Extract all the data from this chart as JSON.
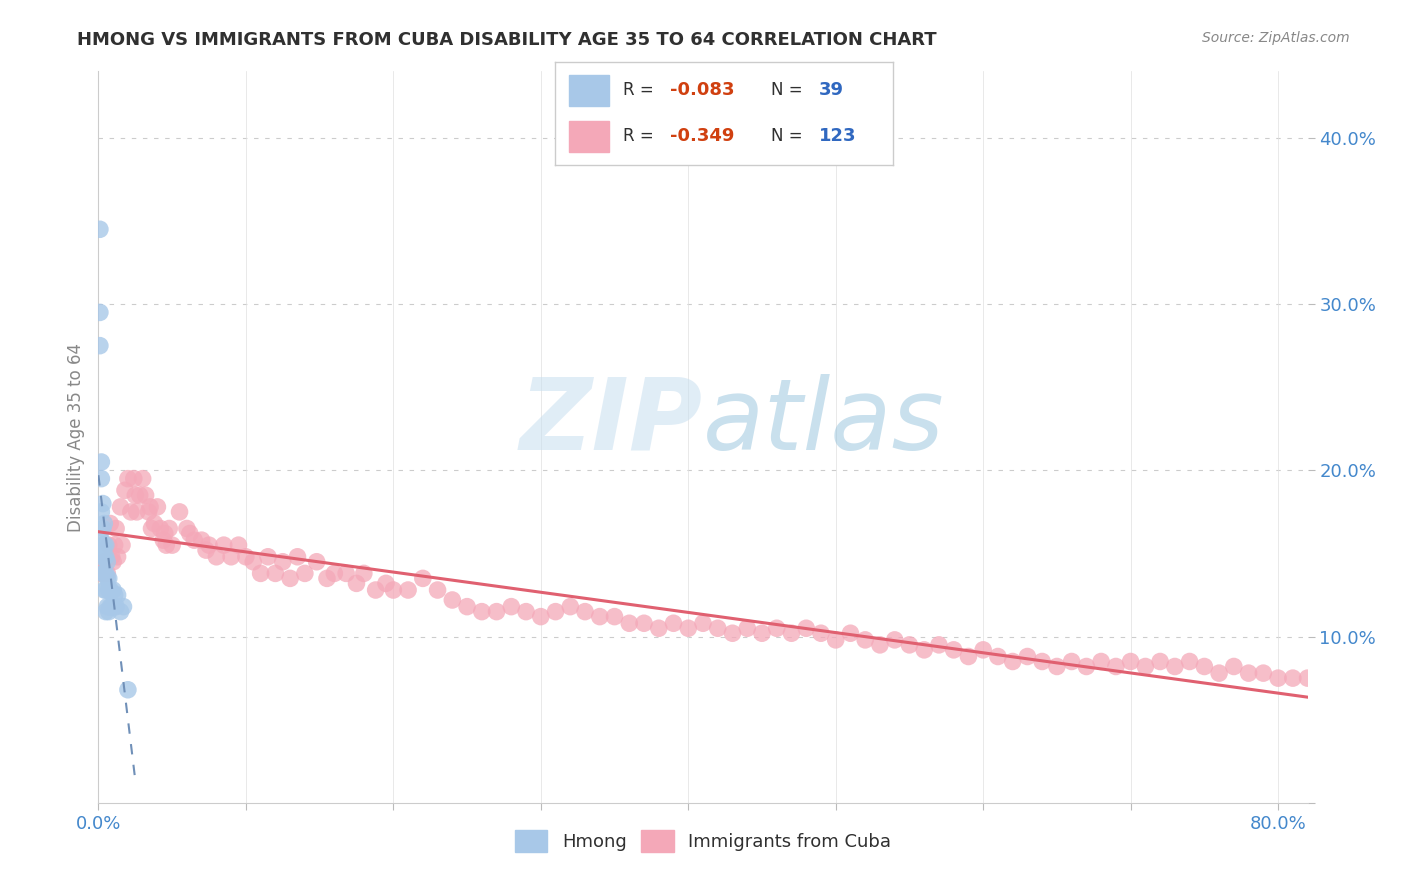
{
  "title": "HMONG VS IMMIGRANTS FROM CUBA DISABILITY AGE 35 TO 64 CORRELATION CHART",
  "source": "Source: ZipAtlas.com",
  "ylabel": "Disability Age 35 to 64",
  "xlim": [
    0.0,
    0.82
  ],
  "ylim": [
    0.0,
    0.44
  ],
  "xticks": [
    0.0,
    0.1,
    0.2,
    0.3,
    0.4,
    0.5,
    0.6,
    0.7,
    0.8
  ],
  "yticks": [
    0.0,
    0.1,
    0.2,
    0.3,
    0.4
  ],
  "hmong_color": "#a8c8e8",
  "cuba_color": "#f4a8b8",
  "hmong_line_color": "#7090b8",
  "cuba_line_color": "#e06070",
  "title_color": "#303030",
  "tick_color": "#4488cc",
  "source_color": "#888888",
  "ylabel_color": "#888888",
  "grid_color": "#cccccc",
  "background_color": "#ffffff",
  "hmong_R": -0.083,
  "hmong_N": 39,
  "cuba_R": -0.349,
  "cuba_N": 123,
  "hmong_x": [
    0.001,
    0.001,
    0.001,
    0.002,
    0.002,
    0.002,
    0.002,
    0.002,
    0.003,
    0.003,
    0.003,
    0.003,
    0.004,
    0.004,
    0.004,
    0.004,
    0.004,
    0.005,
    0.005,
    0.005,
    0.005,
    0.005,
    0.006,
    0.006,
    0.006,
    0.007,
    0.007,
    0.007,
    0.008,
    0.008,
    0.009,
    0.01,
    0.01,
    0.011,
    0.012,
    0.013,
    0.015,
    0.017,
    0.02
  ],
  "hmong_y": [
    0.345,
    0.295,
    0.275,
    0.205,
    0.195,
    0.175,
    0.158,
    0.148,
    0.18,
    0.165,
    0.155,
    0.138,
    0.168,
    0.155,
    0.148,
    0.138,
    0.128,
    0.155,
    0.148,
    0.138,
    0.128,
    0.115,
    0.145,
    0.135,
    0.118,
    0.135,
    0.128,
    0.115,
    0.128,
    0.118,
    0.118,
    0.128,
    0.118,
    0.125,
    0.118,
    0.125,
    0.115,
    0.118,
    0.068
  ],
  "cuba_x": [
    0.002,
    0.004,
    0.006,
    0.007,
    0.008,
    0.009,
    0.01,
    0.011,
    0.012,
    0.013,
    0.015,
    0.016,
    0.018,
    0.02,
    0.022,
    0.024,
    0.026,
    0.028,
    0.03,
    0.032,
    0.034,
    0.036,
    0.038,
    0.04,
    0.042,
    0.044,
    0.046,
    0.048,
    0.05,
    0.055,
    0.06,
    0.065,
    0.07,
    0.075,
    0.08,
    0.085,
    0.09,
    0.095,
    0.1,
    0.105,
    0.11,
    0.115,
    0.12,
    0.125,
    0.13,
    0.135,
    0.14,
    0.148,
    0.155,
    0.16,
    0.168,
    0.175,
    0.18,
    0.188,
    0.195,
    0.2,
    0.21,
    0.22,
    0.23,
    0.24,
    0.25,
    0.26,
    0.27,
    0.28,
    0.29,
    0.3,
    0.31,
    0.32,
    0.33,
    0.34,
    0.35,
    0.36,
    0.37,
    0.38,
    0.39,
    0.4,
    0.41,
    0.42,
    0.43,
    0.44,
    0.45,
    0.46,
    0.47,
    0.48,
    0.49,
    0.5,
    0.51,
    0.52,
    0.53,
    0.54,
    0.55,
    0.56,
    0.57,
    0.58,
    0.59,
    0.6,
    0.61,
    0.62,
    0.63,
    0.64,
    0.65,
    0.66,
    0.67,
    0.68,
    0.69,
    0.7,
    0.71,
    0.72,
    0.73,
    0.74,
    0.75,
    0.76,
    0.77,
    0.78,
    0.79,
    0.8,
    0.81,
    0.82,
    0.025,
    0.035,
    0.045,
    0.062,
    0.073
  ],
  "cuba_y": [
    0.138,
    0.145,
    0.138,
    0.155,
    0.168,
    0.148,
    0.145,
    0.155,
    0.165,
    0.148,
    0.178,
    0.155,
    0.188,
    0.195,
    0.175,
    0.195,
    0.175,
    0.185,
    0.195,
    0.185,
    0.175,
    0.165,
    0.168,
    0.178,
    0.165,
    0.158,
    0.155,
    0.165,
    0.155,
    0.175,
    0.165,
    0.158,
    0.158,
    0.155,
    0.148,
    0.155,
    0.148,
    0.155,
    0.148,
    0.145,
    0.138,
    0.148,
    0.138,
    0.145,
    0.135,
    0.148,
    0.138,
    0.145,
    0.135,
    0.138,
    0.138,
    0.132,
    0.138,
    0.128,
    0.132,
    0.128,
    0.128,
    0.135,
    0.128,
    0.122,
    0.118,
    0.115,
    0.115,
    0.118,
    0.115,
    0.112,
    0.115,
    0.118,
    0.115,
    0.112,
    0.112,
    0.108,
    0.108,
    0.105,
    0.108,
    0.105,
    0.108,
    0.105,
    0.102,
    0.105,
    0.102,
    0.105,
    0.102,
    0.105,
    0.102,
    0.098,
    0.102,
    0.098,
    0.095,
    0.098,
    0.095,
    0.092,
    0.095,
    0.092,
    0.088,
    0.092,
    0.088,
    0.085,
    0.088,
    0.085,
    0.082,
    0.085,
    0.082,
    0.085,
    0.082,
    0.085,
    0.082,
    0.085,
    0.082,
    0.085,
    0.082,
    0.078,
    0.082,
    0.078,
    0.078,
    0.075,
    0.075,
    0.075,
    0.185,
    0.178,
    0.162,
    0.162,
    0.152
  ]
}
